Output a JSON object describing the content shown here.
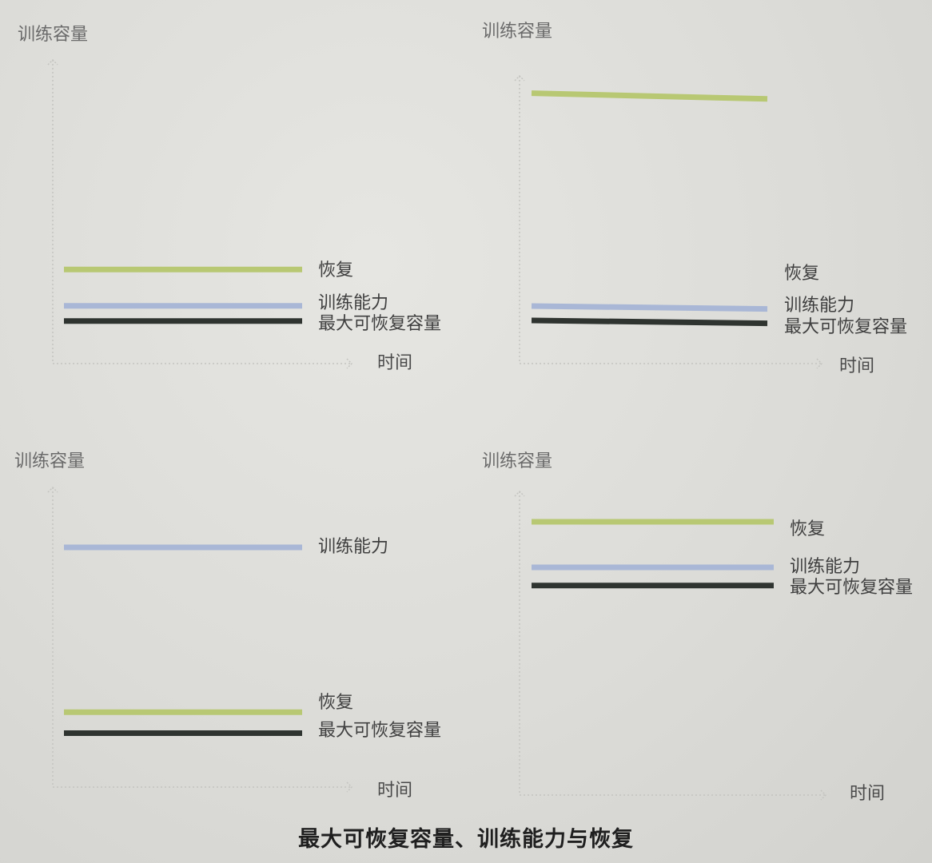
{
  "caption": "最大可恢复容量、训练能力与恢复",
  "colors": {
    "recovery": "#b8c873",
    "training_ability": "#a9b7d6",
    "max_recoverable": "#2f3430",
    "axis": "#c4c4c0",
    "label": "#3f3f3f"
  },
  "chart_data": [
    {
      "type": "line",
      "ylabel": "训练容量",
      "xlabel": "时间",
      "ylim": [
        0,
        100
      ],
      "grid": false,
      "series": [
        {
          "name": "恢复",
          "color_key": "recovery",
          "values": [
            31,
            31
          ]
        },
        {
          "name": "训练能力",
          "color_key": "training_ability",
          "values": [
            19,
            19
          ]
        },
        {
          "name": "最大可恢复容量",
          "color_key": "max_recoverable",
          "values": [
            14,
            14
          ]
        }
      ]
    },
    {
      "type": "line",
      "ylabel": "训练容量",
      "xlabel": "时间",
      "ylim": [
        0,
        100
      ],
      "grid": false,
      "series": [
        {
          "name": "",
          "color_key": "recovery",
          "values": [
            94,
            92
          ]
        },
        {
          "name": "恢复",
          "color_key": "",
          "values": []
        },
        {
          "name": "训练能力",
          "color_key": "training_ability",
          "values": [
            20,
            19
          ]
        },
        {
          "name": "最大可恢复容量",
          "color_key": "max_recoverable",
          "values": [
            15,
            14
          ]
        }
      ]
    },
    {
      "type": "line",
      "ylabel": "训练容量",
      "xlabel": "时间",
      "ylim": [
        0,
        100
      ],
      "grid": false,
      "series": [
        {
          "name": "训练能力",
          "color_key": "training_ability",
          "values": [
            80,
            80
          ]
        },
        {
          "name": "恢复",
          "color_key": "recovery",
          "values": [
            25,
            25
          ]
        },
        {
          "name": "最大可恢复容量",
          "color_key": "max_recoverable",
          "values": [
            18,
            18
          ]
        }
      ]
    },
    {
      "type": "line",
      "ylabel": "训练容量",
      "xlabel": "时间",
      "ylim": [
        0,
        100
      ],
      "grid": false,
      "series": [
        {
          "name": "恢复",
          "color_key": "recovery",
          "values": [
            90,
            90
          ]
        },
        {
          "name": "训练能力",
          "color_key": "training_ability",
          "values": [
            75,
            75
          ]
        },
        {
          "name": "最大可恢复容量",
          "color_key": "max_recoverable",
          "values": [
            69,
            69
          ]
        }
      ]
    }
  ]
}
